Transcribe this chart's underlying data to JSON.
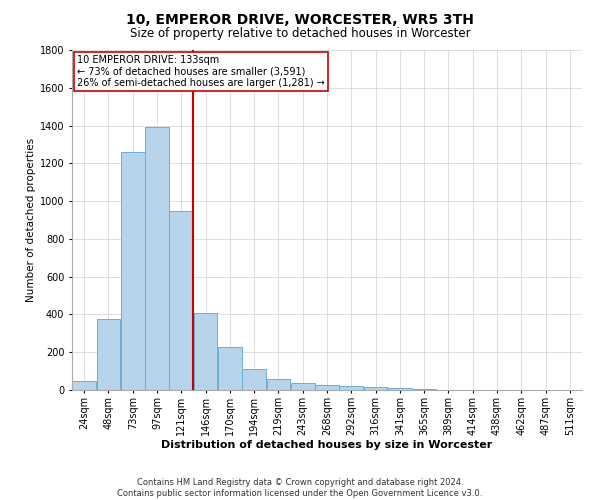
{
  "title": "10, EMPEROR DRIVE, WORCESTER, WR5 3TH",
  "subtitle": "Size of property relative to detached houses in Worcester",
  "xlabel": "Distribution of detached houses by size in Worcester",
  "ylabel": "Number of detached properties",
  "footnote1": "Contains HM Land Registry data © Crown copyright and database right 2024.",
  "footnote2": "Contains public sector information licensed under the Open Government Licence v3.0.",
  "annotation_line1": "10 EMPEROR DRIVE: 133sqm",
  "annotation_line2": "← 73% of detached houses are smaller (3,591)",
  "annotation_line3": "26% of semi-detached houses are larger (1,281) →",
  "property_size_bin": 4,
  "bar_color": "#b8d4ea",
  "bar_edge_color": "#6aaed6",
  "red_line_color": "#cc0000",
  "annotation_box_color": "#cc0000",
  "grid_color": "#d0d0d0",
  "background_color": "#ffffff",
  "categories": [
    "24sqm",
    "48sqm",
    "73sqm",
    "97sqm",
    "121sqm",
    "146sqm",
    "170sqm",
    "194sqm",
    "219sqm",
    "243sqm",
    "268sqm",
    "292sqm",
    "316sqm",
    "341sqm",
    "365sqm",
    "389sqm",
    "414sqm",
    "438sqm",
    "462sqm",
    "487sqm",
    "511sqm"
  ],
  "values": [
    50,
    375,
    1260,
    1390,
    950,
    410,
    230,
    110,
    60,
    35,
    25,
    20,
    15,
    8,
    4,
    2,
    2,
    1,
    1,
    1,
    1
  ],
  "ylim": [
    0,
    1800
  ],
  "yticks": [
    0,
    200,
    400,
    600,
    800,
    1000,
    1200,
    1400,
    1600,
    1800
  ],
  "title_fontsize": 10,
  "subtitle_fontsize": 8.5,
  "xlabel_fontsize": 8,
  "ylabel_fontsize": 7.5,
  "tick_fontsize": 7,
  "footnote_fontsize": 6,
  "annotation_fontsize": 7
}
